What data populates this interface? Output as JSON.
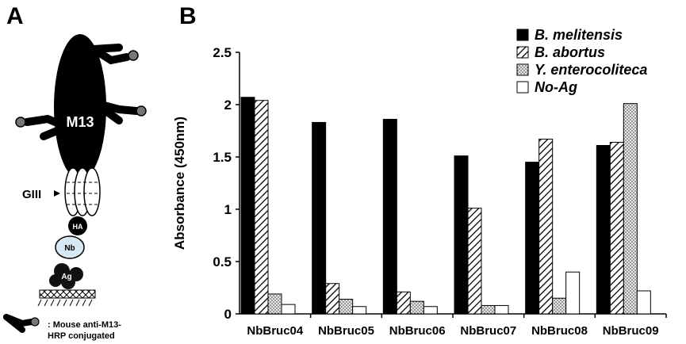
{
  "panels": {
    "a_letter": "A",
    "b_letter": "B"
  },
  "diagram": {
    "phage_label": "M13",
    "giii_label": "GIII",
    "ha_label": "HA",
    "nb_label": "Nb",
    "ag_label": "Ag",
    "legend_line1": ": Mouse anti-M13-",
    "legend_line2": "HRP conjugated",
    "icons": [
      "m13-phage-body",
      "antibody-icon",
      "giii-protein",
      "ha-tag",
      "nanobody",
      "antigen",
      "plate-surface"
    ]
  },
  "chart_data": {
    "type": "bar",
    "ylabel": "Absorbance (450nm)",
    "xlabel": "",
    "ylim": [
      0,
      2.5
    ],
    "yticks": [
      0,
      0.5,
      1,
      1.5,
      2,
      2.5
    ],
    "ytick_labels": [
      "0",
      "0.5",
      "1",
      "1.5",
      "2",
      "2.5"
    ],
    "grid": false,
    "legend_position": "top-right",
    "categories": [
      "NbBruc04",
      "NbBruc05",
      "NbBruc06",
      "NbBruc07",
      "NbBruc08",
      "NbBruc09"
    ],
    "series": [
      {
        "name": "B. melitensis",
        "fill": "solid",
        "color": "#000000",
        "values": [
          2.07,
          1.83,
          1.86,
          1.51,
          1.45,
          1.61
        ]
      },
      {
        "name": "B. abortus",
        "fill": "diagonal-hatch",
        "color": "#000000",
        "values": [
          2.04,
          0.29,
          0.21,
          1.01,
          1.67,
          1.64
        ]
      },
      {
        "name": "Y. enterocoliteca",
        "fill": "dotted",
        "color": "#888888",
        "values": [
          0.19,
          0.14,
          0.12,
          0.08,
          0.15,
          2.01
        ]
      },
      {
        "name": "No-Ag",
        "fill": "none",
        "color": "#ffffff",
        "values": [
          0.09,
          0.07,
          0.07,
          0.08,
          0.4,
          0.22
        ]
      }
    ]
  }
}
